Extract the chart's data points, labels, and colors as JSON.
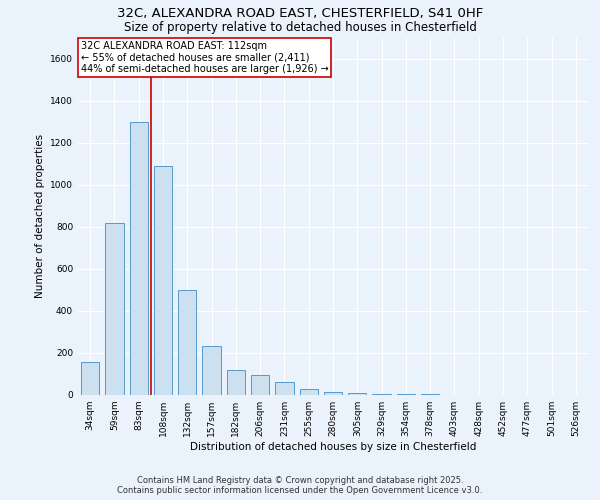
{
  "title_line1": "32C, ALEXANDRA ROAD EAST, CHESTERFIELD, S41 0HF",
  "title_line2": "Size of property relative to detached houses in Chesterfield",
  "xlabel": "Distribution of detached houses by size in Chesterfield",
  "ylabel": "Number of detached properties",
  "categories": [
    "34sqm",
    "59sqm",
    "83sqm",
    "108sqm",
    "132sqm",
    "157sqm",
    "182sqm",
    "206sqm",
    "231sqm",
    "255sqm",
    "280sqm",
    "305sqm",
    "329sqm",
    "354sqm",
    "378sqm",
    "403sqm",
    "428sqm",
    "452sqm",
    "477sqm",
    "501sqm",
    "526sqm"
  ],
  "values": [
    155,
    820,
    1300,
    1090,
    500,
    235,
    120,
    95,
    60,
    30,
    12,
    8,
    5,
    4,
    3,
    2,
    2,
    1,
    1,
    1,
    0
  ],
  "bar_color": "#cce0f0",
  "bar_edge_color": "#5599cc",
  "vline_x_index": 2.5,
  "vline_color": "#cc0000",
  "annotation_title": "32C ALEXANDRA ROAD EAST: 112sqm",
  "annotation_line2": "← 55% of detached houses are smaller (2,411)",
  "annotation_line3": "44% of semi-detached houses are larger (1,926) →",
  "annotation_box_color": "#cc0000",
  "ylim": [
    0,
    1700
  ],
  "yticks": [
    0,
    200,
    400,
    600,
    800,
    1000,
    1200,
    1400,
    1600
  ],
  "footer_line1": "Contains HM Land Registry data © Crown copyright and database right 2025.",
  "footer_line2": "Contains public sector information licensed under the Open Government Licence v3.0.",
  "bg_color": "#eaf2fb",
  "plot_bg_color": "#eaf2fb",
  "grid_color": "#ffffff",
  "title_fontsize": 9.5,
  "subtitle_fontsize": 8.5,
  "axis_label_fontsize": 7.5,
  "tick_fontsize": 6.5,
  "annotation_fontsize": 7,
  "footer_fontsize": 6
}
